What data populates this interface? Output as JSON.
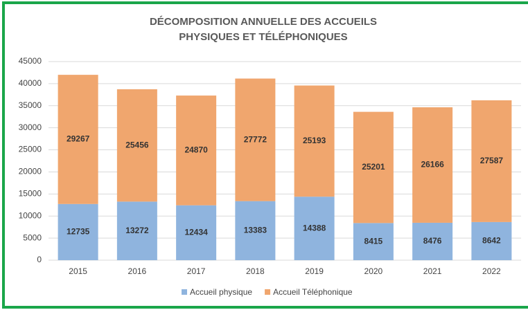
{
  "chart_data": {
    "type": "stacked_bar",
    "title": [
      "DÉCOMPOSITION ANNUELLE DES ACCUEILS",
      "PHYSIQUES ET TÉLÉPHONIQUES"
    ],
    "categories": [
      "2015",
      "2016",
      "2017",
      "2018",
      "2019",
      "2020",
      "2021",
      "2022"
    ],
    "series": [
      {
        "name": "Accueil physique",
        "color": "#8fb4de",
        "values": [
          12735,
          13272,
          12434,
          13383,
          14388,
          8415,
          8476,
          8642
        ]
      },
      {
        "name": "Accueil Téléphonique",
        "color": "#f0a66e",
        "values": [
          29267,
          25456,
          24870,
          27772,
          25193,
          25201,
          26166,
          27587
        ]
      }
    ],
    "ylim": [
      0,
      45000
    ],
    "yticks": [
      0,
      5000,
      10000,
      15000,
      20000,
      25000,
      30000,
      35000,
      40000,
      45000
    ],
    "grid": true,
    "legend": "bottom"
  }
}
